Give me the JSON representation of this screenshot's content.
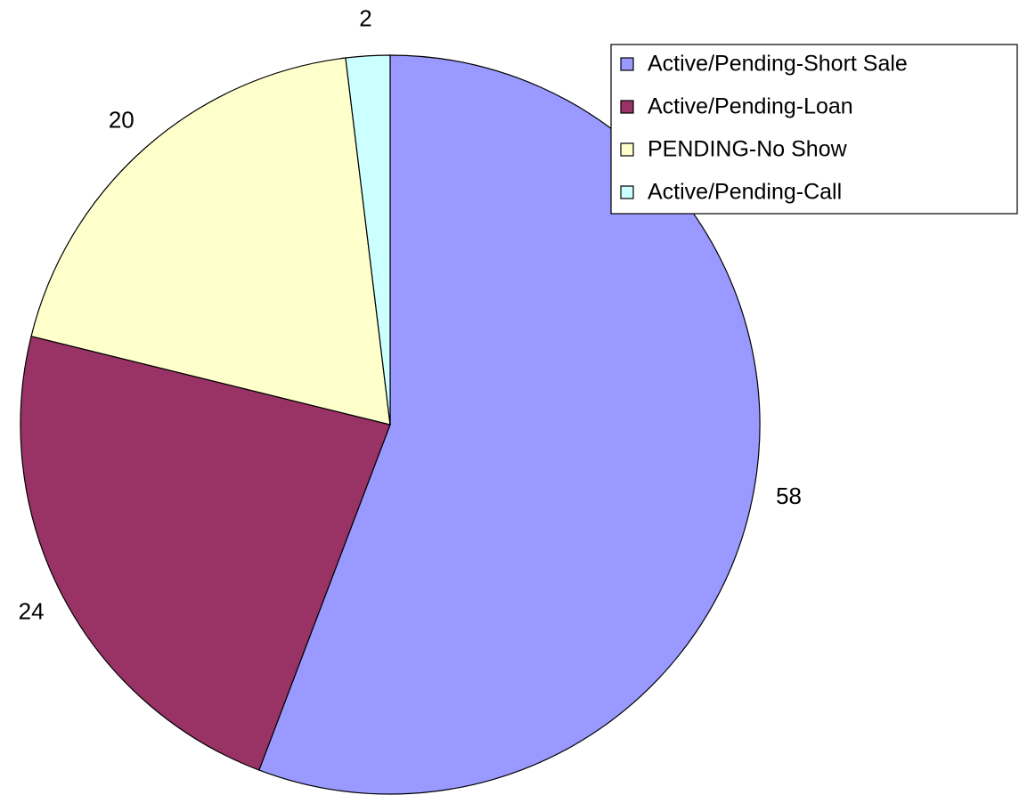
{
  "chart_data": {
    "type": "pie",
    "categories": [
      "Active/Pending-Short Sale",
      "Active/Pending-Loan",
      "PENDING-No Show",
      "Active/Pending-Call"
    ],
    "values": [
      58,
      24,
      20,
      2
    ],
    "colors": [
      "#9999ff",
      "#993366",
      "#ffffcc",
      "#ccffff"
    ],
    "legend": "top-right"
  }
}
